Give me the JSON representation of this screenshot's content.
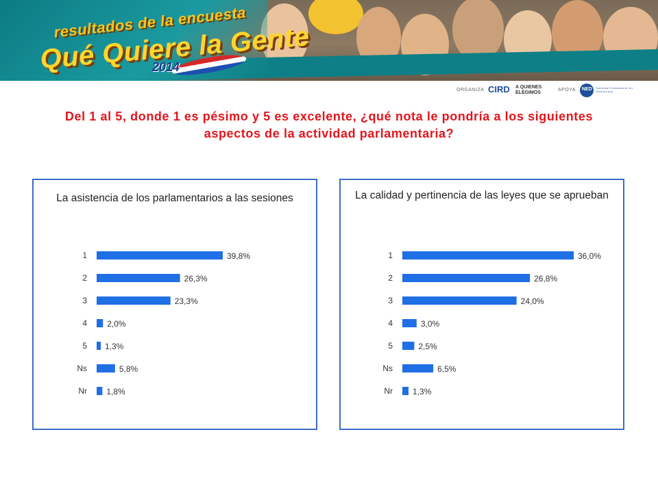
{
  "banner": {
    "line1": "resultados de la encuesta",
    "line2": "Qué Quiere la Gente",
    "year": "2014"
  },
  "sponsors": {
    "organiza_label": "ORGANIZA",
    "org1": "CIRD",
    "org2": "A QUIENES ELEGIMOS",
    "apoya_label": "APOYA",
    "org3": "NED",
    "org3_full": "National Endowment for Democracy"
  },
  "question": "Del 1 al 5, donde 1 es pésimo y 5 es excelente, ¿qué nota le pondría a los siguientes aspectos de la actividad parlamentaria?",
  "colors": {
    "bar": "#1f6fe5",
    "question": "#e3141c",
    "panel_border": "#3a6cc6"
  },
  "chart_data": [
    {
      "type": "bar",
      "orientation": "horizontal",
      "title": "La asistencia de los parlamentarios a las sesiones",
      "categories": [
        "1",
        "2",
        "3",
        "4",
        "5",
        "Ns",
        "Nr"
      ],
      "values": [
        39.8,
        26.3,
        23.3,
        2.0,
        1.3,
        5.8,
        1.8
      ],
      "labels": [
        "39,8%",
        "26,3%",
        "23,3%",
        "2,0%",
        "1,3%",
        "5,8%",
        "1,8%"
      ]
    },
    {
      "type": "bar",
      "orientation": "horizontal",
      "title": "La calidad y pertinencia de las leyes que se aprueban",
      "categories": [
        "1",
        "2",
        "3",
        "4",
        "5",
        "Ns",
        "Nr"
      ],
      "values": [
        36.0,
        26.8,
        24.0,
        3.0,
        2.5,
        6.5,
        1.3
      ],
      "labels": [
        "36,0%",
        "26,8%",
        "24,0%",
        "3,0%",
        "2,5%",
        "6,5%",
        "1,3%"
      ]
    }
  ]
}
